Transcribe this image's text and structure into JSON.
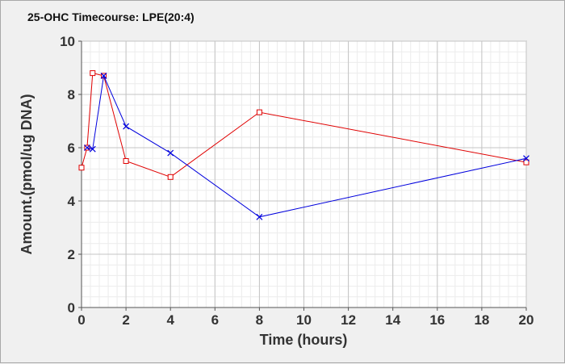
{
  "chart_data": {
    "type": "line",
    "title": "25-OHC Timecourse: LPE(20:4)",
    "xlabel": "Time (hours)",
    "ylabel": "Amount.(pmol/ug DNA)",
    "xlim": [
      0,
      20
    ],
    "ylim": [
      0,
      10
    ],
    "xticks": [
      0,
      2,
      4,
      6,
      8,
      10,
      12,
      14,
      16,
      18,
      20
    ],
    "yticks": [
      0,
      2,
      4,
      6,
      8,
      10
    ],
    "grid": true,
    "series": [
      {
        "color": "#e00000",
        "marker": "square",
        "x": [
          0,
          0.25,
          0.5,
          1,
          2,
          4,
          8,
          20
        ],
        "y": [
          5.25,
          6.0,
          8.8,
          8.7,
          5.5,
          4.9,
          7.33,
          5.45
        ]
      },
      {
        "color": "#0000dd",
        "marker": "x",
        "x": [
          0.25,
          0.5,
          1,
          2,
          4,
          8,
          20
        ],
        "y": [
          6.0,
          5.95,
          8.7,
          6.8,
          5.8,
          3.4,
          5.6
        ]
      }
    ]
  }
}
